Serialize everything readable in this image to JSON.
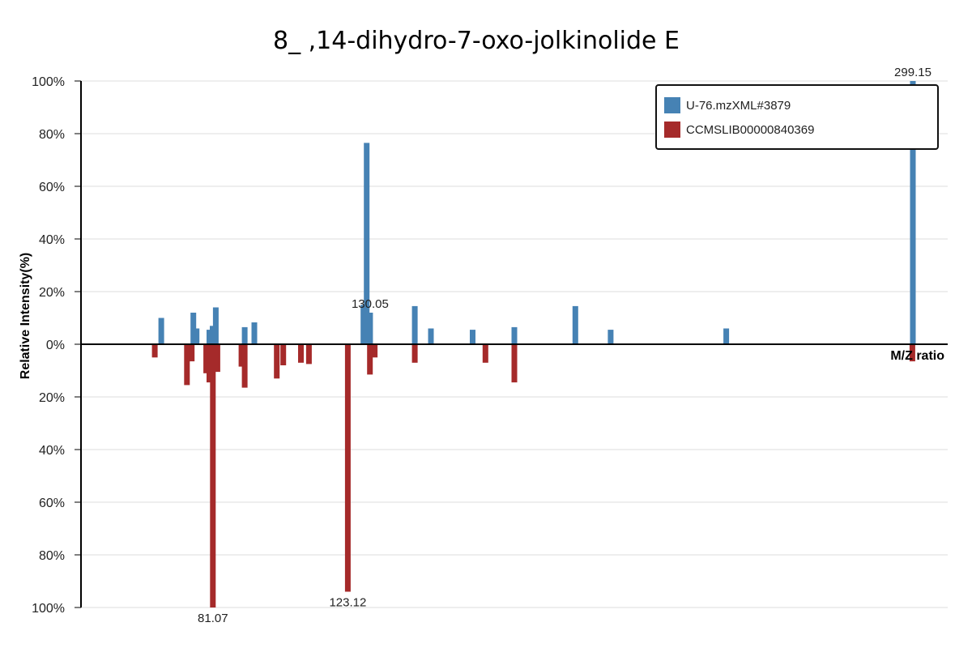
{
  "chart_data": {
    "type": "bar",
    "title": "8_ ,14-dihydro-7-oxo-jolkinolide E",
    "xlabel": "M/Z ratio",
    "ylabel": "Relative Intensity(%)",
    "y_ticks_top": [
      "100%",
      "80%",
      "60%",
      "40%",
      "20%",
      "0%"
    ],
    "y_ticks_bottom": [
      "20%",
      "40%",
      "60%",
      "80%",
      "100%"
    ],
    "ylim": [
      -100,
      100
    ],
    "xlim": [
      40,
      310
    ],
    "grid": true,
    "legend_position": "top-right",
    "series": [
      {
        "name": "U-76.mzXML#3879",
        "color": "#4682b4",
        "direction": "up",
        "peaks": [
          {
            "mz": 65.0,
            "intensity": 10
          },
          {
            "mz": 75.0,
            "intensity": 12
          },
          {
            "mz": 76.0,
            "intensity": 6
          },
          {
            "mz": 80.0,
            "intensity": 5.5
          },
          {
            "mz": 81.0,
            "intensity": 7
          },
          {
            "mz": 82.0,
            "intensity": 14
          },
          {
            "mz": 91.0,
            "intensity": 6.5
          },
          {
            "mz": 94.0,
            "intensity": 8.3
          },
          {
            "mz": 128.0,
            "intensity": 15
          },
          {
            "mz": 129.0,
            "intensity": 76.5
          },
          {
            "mz": 130.05,
            "intensity": 12,
            "label": "130.05"
          },
          {
            "mz": 144.0,
            "intensity": 14.5
          },
          {
            "mz": 149.0,
            "intensity": 6
          },
          {
            "mz": 162.0,
            "intensity": 5.5
          },
          {
            "mz": 175.0,
            "intensity": 6.5
          },
          {
            "mz": 194.0,
            "intensity": 14.5
          },
          {
            "mz": 205.0,
            "intensity": 5.5
          },
          {
            "mz": 241.0,
            "intensity": 6
          },
          {
            "mz": 299.15,
            "intensity": 100,
            "label": "299.15"
          }
        ]
      },
      {
        "name": "CCMSLIB00000840369",
        "color": "#a52a2a",
        "direction": "down",
        "peaks": [
          {
            "mz": 63.0,
            "intensity": 5
          },
          {
            "mz": 73.0,
            "intensity": 15.5
          },
          {
            "mz": 74.5,
            "intensity": 6.5
          },
          {
            "mz": 79.0,
            "intensity": 11
          },
          {
            "mz": 80.0,
            "intensity": 14.5
          },
          {
            "mz": 81.07,
            "intensity": 100,
            "label": "81.07"
          },
          {
            "mz": 82.5,
            "intensity": 10.5
          },
          {
            "mz": 90.0,
            "intensity": 8.5
          },
          {
            "mz": 91.0,
            "intensity": 16.5
          },
          {
            "mz": 101.0,
            "intensity": 13
          },
          {
            "mz": 103.0,
            "intensity": 8
          },
          {
            "mz": 108.5,
            "intensity": 7
          },
          {
            "mz": 111.0,
            "intensity": 7.5
          },
          {
            "mz": 123.12,
            "intensity": 94,
            "label": "123.12"
          },
          {
            "mz": 130.0,
            "intensity": 11.5
          },
          {
            "mz": 131.5,
            "intensity": 5
          },
          {
            "mz": 144.0,
            "intensity": 7
          },
          {
            "mz": 166.0,
            "intensity": 7
          },
          {
            "mz": 175.0,
            "intensity": 14.5
          },
          {
            "mz": 299.0,
            "intensity": 6.5
          }
        ]
      }
    ]
  }
}
